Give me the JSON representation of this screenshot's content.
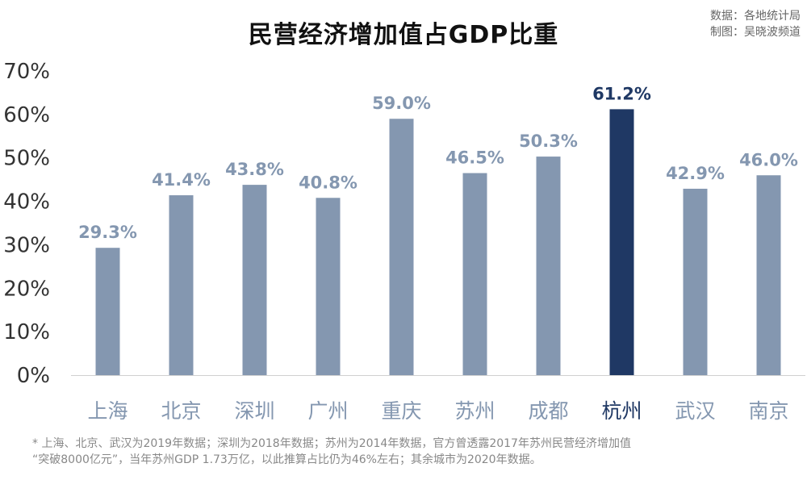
{
  "title": "民营经济增加值占GDP比重",
  "source_lines": [
    "数据：各地统计局",
    "制图：吴晓波频道"
  ],
  "footnote_lines": [
    "* 上海、北京、武汉为2019年数据；深圳为2018年数据；苏州为2014年数据，官方曾透露2017年苏州民营经济增加值",
    "“突破8000亿元”，当年苏州GDP 1.73万亿，以此推算占比仍为46%左右；其余城市为2020年数据。"
  ],
  "colors": {
    "bar": "#8497B0",
    "highlight": "#1F3864",
    "label": "#8497B0",
    "highlight_label": "#1F3864"
  },
  "chart_data": {
    "type": "bar",
    "title": "民营经济增加值占GDP比重",
    "categories": [
      "上海",
      "北京",
      "深圳",
      "广州",
      "重庆",
      "苏州",
      "成都",
      "杭州",
      "武汉",
      "南京"
    ],
    "values": [
      29.3,
      41.4,
      43.8,
      40.8,
      59.0,
      46.5,
      50.3,
      61.2,
      42.9,
      46.0
    ],
    "data_labels": [
      "29.3%",
      "41.4%",
      "43.8%",
      "40.8%",
      "59.0%",
      "46.5%",
      "50.3%",
      "61.2%",
      "42.9%",
      "46.0%"
    ],
    "highlight_category": "杭州",
    "yticks": [
      0,
      10,
      20,
      30,
      40,
      50,
      60,
      70
    ],
    "ytick_labels": [
      "0%",
      "10%",
      "20%",
      "30%",
      "40%",
      "50%",
      "60%",
      "70%"
    ],
    "ylim": [
      0,
      70
    ],
    "xlabel": "",
    "ylabel": "",
    "grid": false,
    "legend": "none"
  }
}
